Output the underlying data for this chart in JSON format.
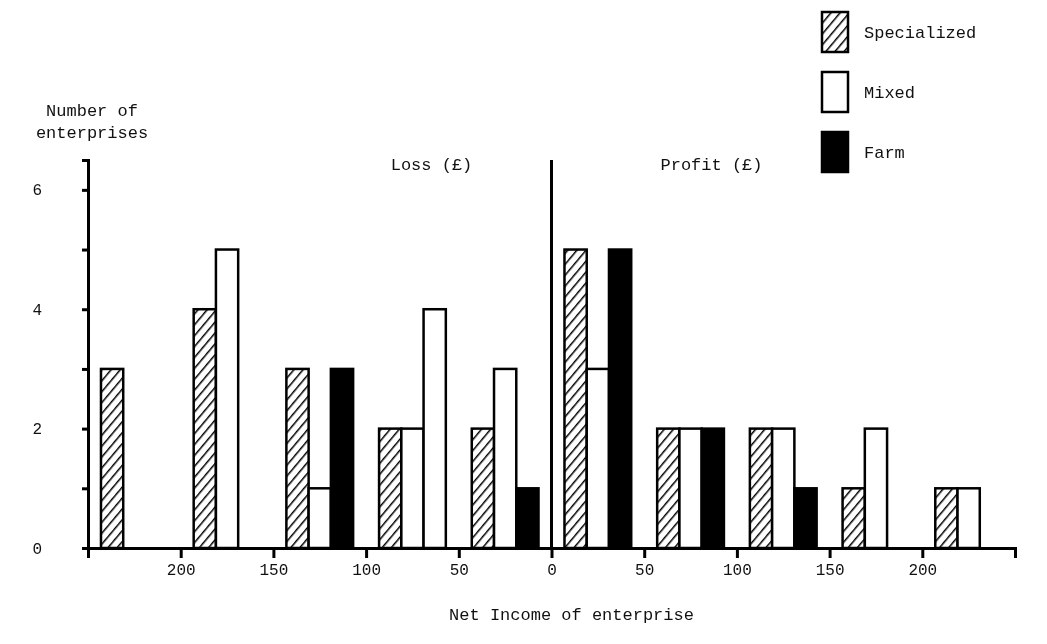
{
  "chart_data": {
    "type": "bar",
    "xlabel": "Net Income of enterprise",
    "ylabel": "Number of enterprises",
    "x": [
      -225,
      -175,
      -125,
      -75,
      -25,
      25,
      75,
      125,
      175,
      225
    ],
    "series": [
      {
        "name": "Specialized",
        "color": "#000000",
        "values": [
          3,
          4,
          3,
          2,
          2,
          5,
          2,
          2,
          1,
          1
        ]
      },
      {
        "name": "Mixed",
        "color": "#ffffff",
        "values": [
          null,
          5,
          1,
          2,
          3,
          3,
          2,
          2,
          2,
          1
        ]
      },
      {
        "name": "Farm",
        "color": "#000000",
        "colors": [
          "#000000",
          "#000000",
          "#000000",
          "#ffffff",
          "#000000",
          "#000000",
          "#000000",
          "#000000",
          "#000000",
          "#000000"
        ],
        "values": [
          null,
          null,
          3,
          4,
          1,
          5,
          2,
          1,
          null,
          null
        ]
      }
    ],
    "xlim": [
      -250,
      250
    ],
    "xticks": [
      {
        "value": -200,
        "label": "200"
      },
      {
        "value": -150,
        "label": "150"
      },
      {
        "value": -100,
        "label": "100"
      },
      {
        "value": -50,
        "label": "50"
      },
      0,
      50,
      100,
      150,
      200
    ],
    "ylim": [
      0,
      6.5
    ],
    "yticks": [
      0,
      {
        "value": 1,
        "label": null
      },
      2,
      {
        "value": 3,
        "label": null
      },
      4,
      {
        "value": 5,
        "label": null
      },
      6
    ],
    "ref_lines": [
      {
        "axis": "x",
        "value": 0,
        "label": null
      }
    ],
    "annotations": [
      "Loss (£)",
      "Profit (£)"
    ],
    "legend": "top right",
    "grid": false
  }
}
